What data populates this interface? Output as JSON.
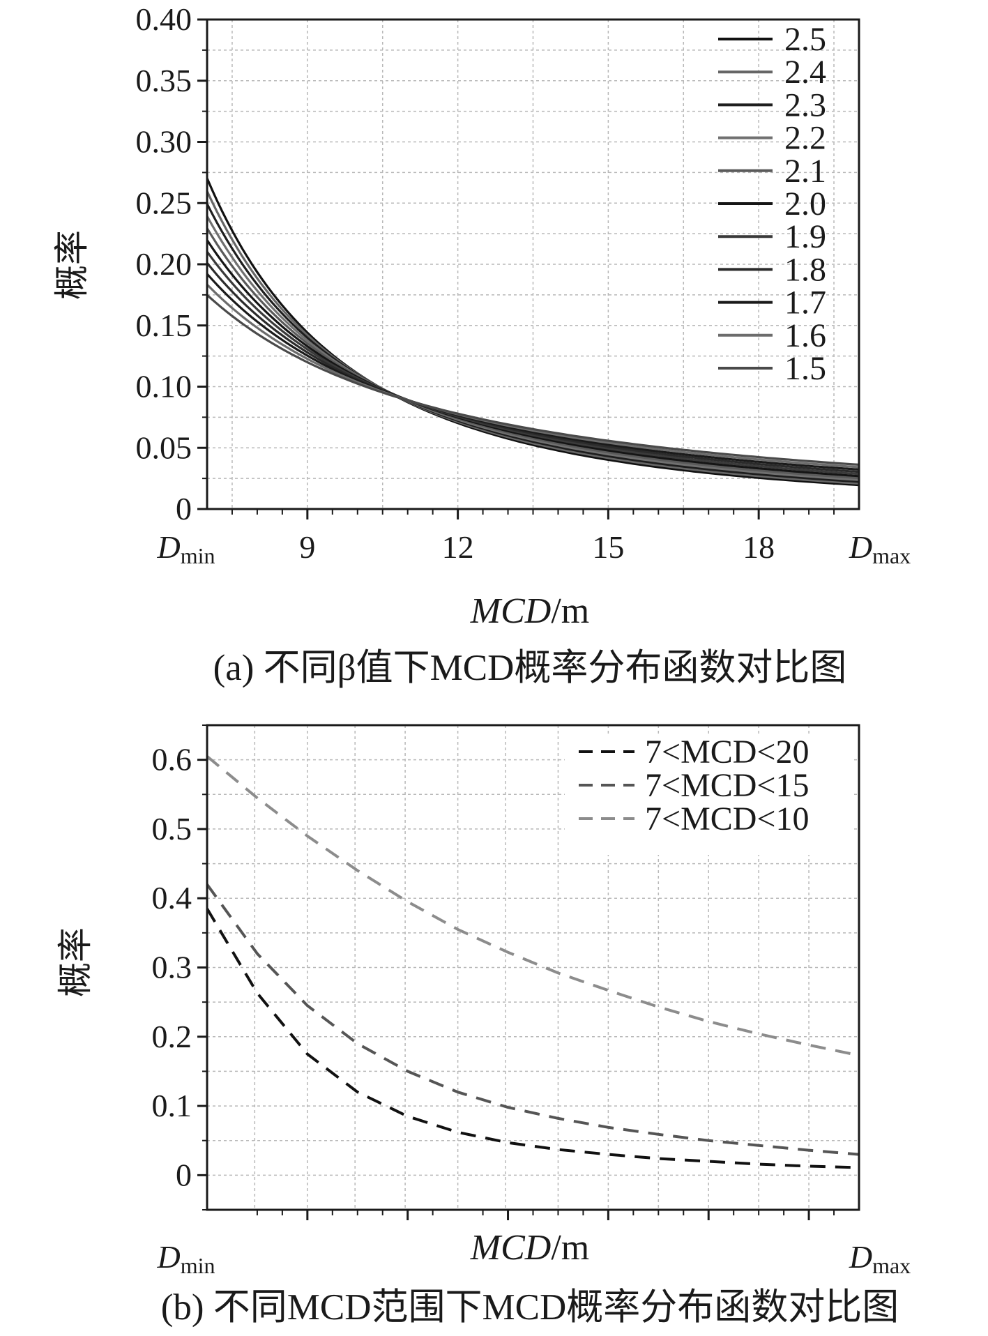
{
  "chart_data": [
    {
      "type": "line",
      "panel": "a",
      "caption": "(a) 不同β值下MCD概率分布函数对比图",
      "ylabel": "概率",
      "xlabel": {
        "italic": "MCD",
        "unit": "/m"
      },
      "xlim": [
        7,
        20
      ],
      "ylim": [
        0,
        0.4
      ],
      "grid": true,
      "xticks": [
        {
          "value": 7,
          "label": "D",
          "sub": "min"
        },
        {
          "value": 9,
          "label": "9"
        },
        {
          "value": 12,
          "label": "12"
        },
        {
          "value": 15,
          "label": "15"
        },
        {
          "value": 18,
          "label": "18"
        },
        {
          "value": 20,
          "label": "D",
          "sub": "max"
        }
      ],
      "yticks": [
        "0",
        "0.05",
        "0.10",
        "0.15",
        "0.20",
        "0.25",
        "0.30",
        "0.35",
        "0.40"
      ],
      "ytick_values": [
        0,
        0.05,
        0.1,
        0.15,
        0.2,
        0.25,
        0.3,
        0.35,
        0.4
      ],
      "legend_position": "top-right",
      "series_function": "power-law p(x)=(β-1)·7^(β-1)·x^(-β) / (1-(7/20)^(β-1)), x in [7,20]",
      "series": [
        {
          "name": "2.5",
          "beta": 2.5,
          "color": "#111111",
          "style": "solid"
        },
        {
          "name": "2.4",
          "beta": 2.4,
          "color": "#666666",
          "style": "solid"
        },
        {
          "name": "2.3",
          "beta": 2.3,
          "color": "#1e1e1e",
          "style": "solid"
        },
        {
          "name": "2.2",
          "beta": 2.2,
          "color": "#707070",
          "style": "solid"
        },
        {
          "name": "2.1",
          "beta": 2.1,
          "color": "#5a5a5a",
          "style": "solid"
        },
        {
          "name": "2.0",
          "beta": 2.0,
          "color": "#151515",
          "style": "solid"
        },
        {
          "name": "1.9",
          "beta": 1.9,
          "color": "#3a3a3a",
          "style": "solid"
        },
        {
          "name": "1.8",
          "beta": 1.8,
          "color": "#2b2b2b",
          "style": "solid"
        },
        {
          "name": "1.7",
          "beta": 1.7,
          "color": "#1a1a1a",
          "style": "solid"
        },
        {
          "name": "1.6",
          "beta": 1.6,
          "color": "#6c6c6c",
          "style": "solid"
        },
        {
          "name": "1.5",
          "beta": 1.5,
          "color": "#4a4a4a",
          "style": "solid"
        }
      ]
    },
    {
      "type": "line",
      "panel": "b",
      "caption": "(b) 不同MCD范围下MCD概率分布函数对比图",
      "ylabel": "概率",
      "xlabel": {
        "italic": "MCD",
        "unit": "/m"
      },
      "xlim": [
        7,
        20
      ],
      "ylim": [
        -0.05,
        0.65
      ],
      "grid": true,
      "xticks": [
        {
          "value": 7,
          "label": "D",
          "sub": "min"
        },
        {
          "value": 20,
          "label": "D",
          "sub": "max"
        }
      ],
      "yticks": [
        "0",
        "0.1",
        "0.2",
        "0.3",
        "0.4",
        "0.5",
        "0.6"
      ],
      "ytick_values": [
        0,
        0.1,
        0.2,
        0.3,
        0.4,
        0.5,
        0.6
      ],
      "legend_position": "top-right",
      "series": [
        {
          "name": "7<MCD<20",
          "color": "#111111",
          "style": "dashed",
          "x": [
            7,
            8,
            9,
            10,
            11,
            12,
            13,
            14,
            15,
            16,
            17,
            18,
            19,
            20
          ],
          "y": [
            0.385,
            0.263,
            0.175,
            0.12,
            0.085,
            0.062,
            0.047,
            0.037,
            0.03,
            0.024,
            0.02,
            0.016,
            0.013,
            0.011
          ]
        },
        {
          "name": "7<MCD<15",
          "color": "#555555",
          "style": "dashed",
          "x": [
            7,
            8,
            9,
            10,
            11,
            12,
            13,
            14,
            15,
            16,
            17,
            18,
            19,
            20
          ],
          "y": [
            0.42,
            0.32,
            0.245,
            0.19,
            0.15,
            0.12,
            0.098,
            0.082,
            0.069,
            0.059,
            0.05,
            0.043,
            0.036,
            0.03
          ]
        },
        {
          "name": "7<MCD<10",
          "color": "#8c8c8c",
          "style": "dashed",
          "x": [
            7,
            8,
            9,
            10,
            11,
            12,
            13,
            14,
            15,
            16,
            17,
            18,
            19,
            20
          ],
          "y": [
            0.605,
            0.545,
            0.49,
            0.44,
            0.395,
            0.355,
            0.322,
            0.292,
            0.267,
            0.243,
            0.222,
            0.204,
            0.188,
            0.173
          ]
        }
      ]
    }
  ]
}
